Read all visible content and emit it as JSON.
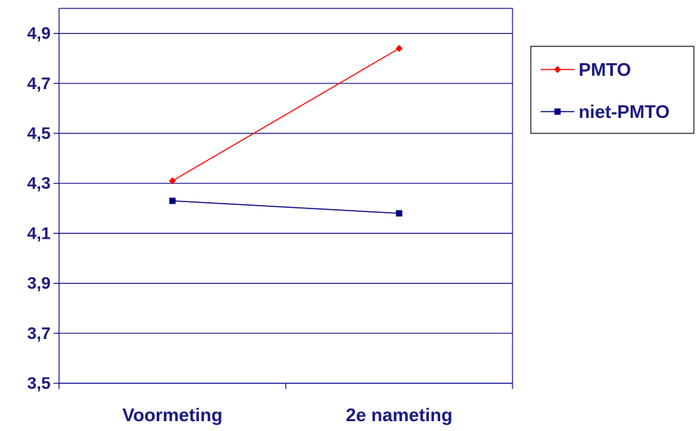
{
  "chart_data": {
    "type": "line",
    "categories": [
      "Voormeting",
      "2e nameting"
    ],
    "series": [
      {
        "name": "PMTO",
        "values": [
          4.31,
          4.84
        ],
        "color": "#ff0000",
        "marker": "diamond"
      },
      {
        "name": "niet-PMTO",
        "values": [
          4.23,
          4.18
        ],
        "color": "#000080",
        "marker": "square"
      }
    ],
    "yticks": [
      "4,9",
      "4,7",
      "4,5",
      "4,3",
      "4,1",
      "3,9",
      "3,7",
      "3,5"
    ],
    "ylim": [
      3.5,
      5.0
    ],
    "grid": true,
    "legend": "right",
    "axis_color": "#000080",
    "text_color": "#1a1a80"
  }
}
